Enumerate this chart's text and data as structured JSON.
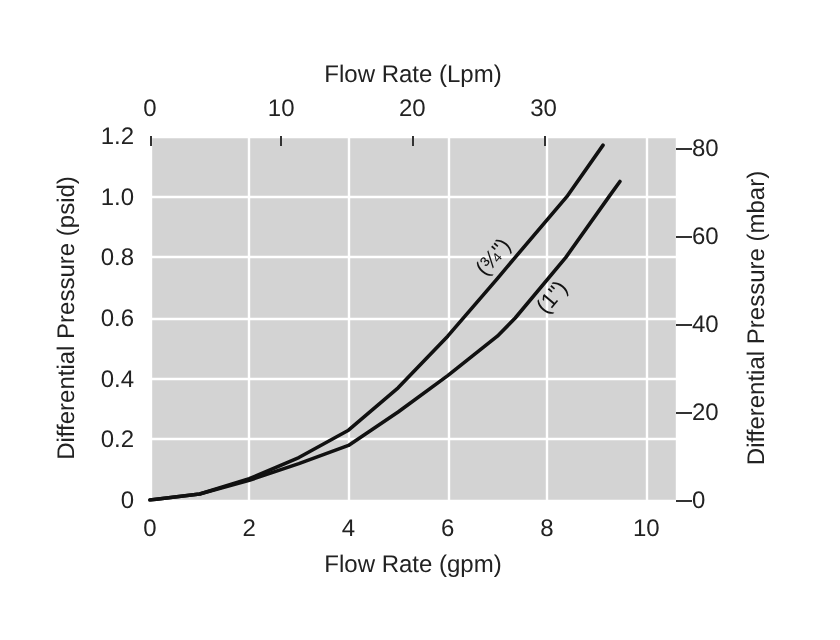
{
  "chart_data": {
    "type": "line",
    "xlabel": "Flow Rate (gpm)",
    "x2label": "Flow Rate (Lpm)",
    "ylabel": "Differential Pressure (psid)",
    "y2label": "Differential Pressure (mbar)",
    "xlim": [
      0,
      10.6
    ],
    "xticks": [
      0,
      2,
      4,
      6,
      8,
      10
    ],
    "x2lim": [
      0,
      40.1
    ],
    "x2ticks": [
      0,
      10,
      20,
      30
    ],
    "ylim": [
      0,
      1.2
    ],
    "yticks": [
      0,
      {
        "value": 0.2,
        "label": "0.2"
      },
      {
        "value": 0.4,
        "label": "0.4"
      },
      {
        "value": 0.6,
        "label": "0.6"
      },
      {
        "value": 0.8,
        "label": "0.8"
      },
      {
        "value": 1.0,
        "label": "1.0"
      },
      {
        "value": 1.2,
        "label": "1.2"
      }
    ],
    "y2lim": [
      0,
      82.7
    ],
    "y2ticks": [
      0,
      20,
      40,
      60,
      80
    ],
    "grid": true,
    "marker": "none",
    "line_style": "solid",
    "series": [
      {
        "name": "(¾\")",
        "color": "#111111",
        "x": [
          0,
          1,
          2,
          3,
          4,
          5,
          6,
          7,
          7.36,
          8.4,
          9.13
        ],
        "values": [
          0,
          0.02,
          0.07,
          0.14,
          0.23,
          0.37,
          0.54,
          0.73,
          0.8,
          1.0,
          1.17
        ]
      },
      {
        "name": "(1\")",
        "color": "#111111",
        "x": [
          0,
          1,
          2,
          3,
          4,
          5,
          6,
          7,
          7.36,
          8.38,
          9.25,
          9.47
        ],
        "values": [
          0,
          0.02,
          0.065,
          0.12,
          0.18,
          0.29,
          0.41,
          0.54,
          0.6,
          0.8,
          1.0,
          1.05
        ]
      }
    ]
  }
}
